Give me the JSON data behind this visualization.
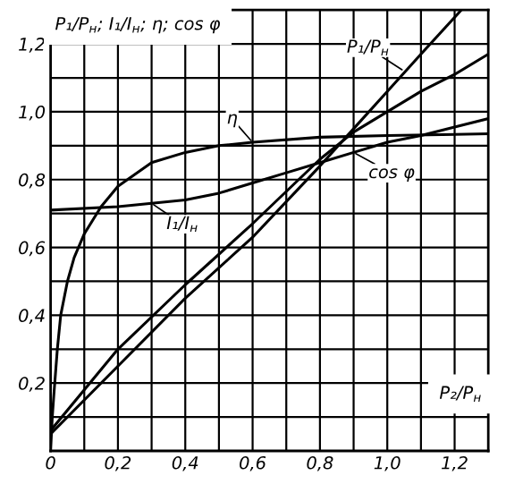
{
  "chart_data": {
    "type": "line",
    "xlabel": "P₂/P$_{н}$",
    "ylabel": "P₁/P$_{н}$; I₁/I$_{н}$; η; cos φ",
    "series": [
      {
        "color": "#000000",
        "x": [
          0,
          0.005,
          0.01,
          0.02,
          0.03,
          0.05,
          0.07,
          0.1,
          0.15,
          0.2,
          0.3,
          0.4,
          0.5,
          0.6,
          0.8,
          1.0,
          1.3
        ],
        "values": [
          0,
          0.1,
          0.17,
          0.3,
          0.4,
          0.5,
          0.57,
          0.64,
          0.72,
          0.78,
          0.85,
          0.88,
          0.9,
          0.91,
          0.925,
          0.93,
          0.935
        ]
      },
      {
        "color": "#000000",
        "x": [
          0,
          0.2,
          0.4,
          0.5,
          0.6,
          0.7,
          0.8,
          0.9,
          1.0,
          1.1,
          1.2,
          1.3
        ],
        "values": [
          0.71,
          0.72,
          0.74,
          0.76,
          0.79,
          0.82,
          0.85,
          0.88,
          0.91,
          0.93,
          0.955,
          0.98
        ]
      },
      {
        "color": "#000000",
        "x": [
          0,
          0.2,
          0.4,
          0.6,
          0.8,
          0.9,
          1.0,
          1.1,
          1.2,
          1.3
        ],
        "values": [
          0.06,
          0.3,
          0.49,
          0.67,
          0.86,
          0.94,
          1.0,
          1.06,
          1.11,
          1.17
        ]
      },
      {
        "color": "#000000",
        "x": [
          0,
          0.2,
          0.4,
          0.6,
          0.8,
          0.9,
          1.0,
          1.1,
          1.22
        ],
        "values": [
          0.05,
          0.25,
          0.45,
          0.63,
          0.84,
          0.95,
          1.06,
          1.17,
          1.3
        ]
      }
    ],
    "annotations": [
      {
        "text": "η",
        "x": 0.6,
        "y": 0.91
      },
      {
        "text": "cos φ",
        "x": 0.9,
        "y": 0.88
      },
      {
        "text": "I₁/I$_{н}$",
        "x": 0.3,
        "y": 0.73
      },
      {
        "text": "P₁/P$_{н}$",
        "x": 1.05,
        "y": 1.12
      }
    ],
    "xlim": [
      0,
      1.3
    ],
    "ylim": [
      0,
      1.3
    ],
    "xticks": [
      {
        "value": 0,
        "label": "0"
      },
      {
        "value": 0.1,
        "label": null
      },
      {
        "value": 0.2,
        "label": "0,2"
      },
      {
        "value": 0.3,
        "label": null
      },
      {
        "value": 0.4,
        "label": "0,4"
      },
      {
        "value": 0.5,
        "label": null
      },
      {
        "value": 0.6,
        "label": "0,6"
      },
      {
        "value": 0.7,
        "label": null
      },
      {
        "value": 0.8,
        "label": "0,8"
      },
      {
        "value": 0.9,
        "label": null
      },
      {
        "value": 1.0,
        "label": "1,0"
      },
      {
        "value": 1.1,
        "label": null
      },
      {
        "value": 1.2,
        "label": "1,2"
      }
    ],
    "yticks": [
      {
        "value": 0.1,
        "label": null
      },
      {
        "value": 0.2,
        "label": "0,2"
      },
      {
        "value": 0.3,
        "label": null
      },
      {
        "value": 0.4,
        "label": "0,4"
      },
      {
        "value": 0.5,
        "label": null
      },
      {
        "value": 0.6,
        "label": "0,6"
      },
      {
        "value": 0.7,
        "label": null
      },
      {
        "value": 0.8,
        "label": "0,8"
      },
      {
        "value": 0.9,
        "label": null
      },
      {
        "value": 1.0,
        "label": "1,0"
      },
      {
        "value": 1.1,
        "label": null
      },
      {
        "value": 1.2,
        "label": "1,2"
      }
    ],
    "grid": true,
    "marker": "none",
    "line_style": "solid",
    "legend": false
  }
}
